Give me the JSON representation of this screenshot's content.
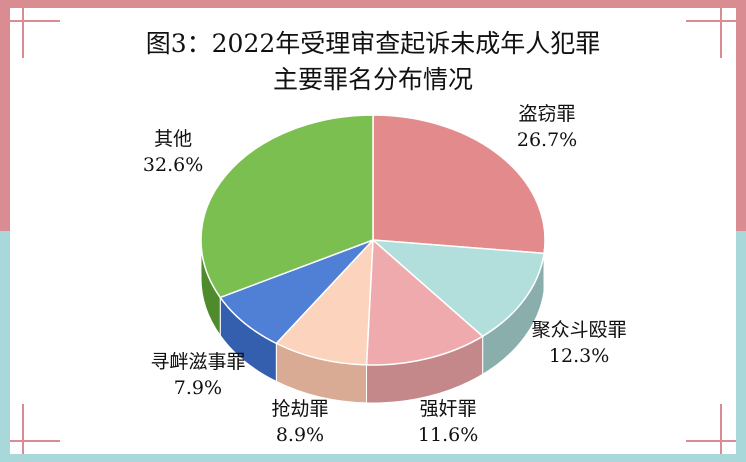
{
  "chart_data": {
    "type": "pie",
    "title_line1": "图3：2022年受理审查起诉未成年人犯罪",
    "title_line2": "主要罪名分布情况",
    "slices": [
      {
        "label": "盗窃罪",
        "value": 26.7,
        "display": "26.7%",
        "color": "#e38a8d",
        "side": "#b86a6d"
      },
      {
        "label": "聚众斗殴罪",
        "value": 12.3,
        "display": "12.3%",
        "color": "#b2dfdc",
        "side": "#8aaeab"
      },
      {
        "label": "强奸罪",
        "value": 11.6,
        "display": "11.6%",
        "color": "#efaaad",
        "side": "#c4878a"
      },
      {
        "label": "抢劫罪",
        "value": 8.9,
        "display": "8.9%",
        "color": "#fcd3bd",
        "side": "#d9ab95"
      },
      {
        "label": "寻衅滋事罪",
        "value": 7.9,
        "display": "7.9%",
        "color": "#4f80d6",
        "side": "#345fae"
      },
      {
        "label": "其他",
        "value": 32.6,
        "display": "32.6%",
        "color": "#7bbf50",
        "side": "#4f8a2c"
      }
    ]
  }
}
